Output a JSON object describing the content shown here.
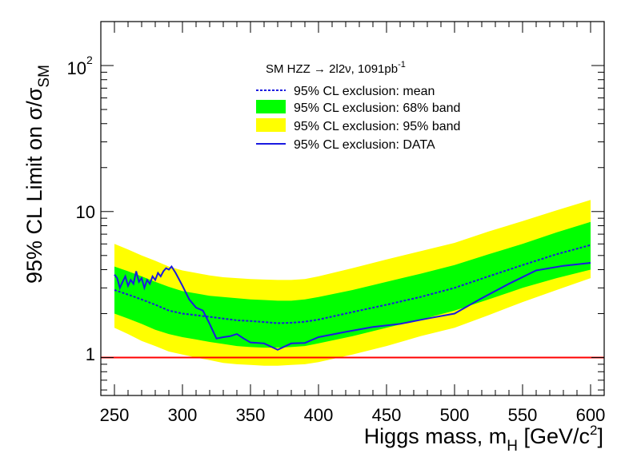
{
  "chart_data": {
    "type": "line",
    "title": "",
    "xlabel": "Higgs mass, m",
    "xlabel_sub": "H",
    "xlabel_units": "[GeV/c",
    "xlabel_units_sup": "2",
    "xlabel_units_end": "]",
    "ylabel": "95% CL Limit on σ/σ",
    "ylabel_sub": "SM",
    "xlim": [
      240,
      610
    ],
    "ylim": [
      0.55,
      200
    ],
    "yscale": "log",
    "x_ticks": [
      250,
      300,
      350,
      400,
      450,
      500,
      550,
      600
    ],
    "x_tick_labels": [
      "250",
      "300",
      "350",
      "400",
      "450",
      "500",
      "550",
      "600"
    ],
    "y_tick_labels": {
      "one": "1",
      "ten": "10",
      "hundred_base": "10",
      "hundred_exp": "2"
    },
    "legend": {
      "header": "SM HZZ → 2l2ν, 1091pb",
      "header_sup": "-1",
      "entries": [
        {
          "label": "95% CL exclusion: mean",
          "style": "dashed-line",
          "color": "#1a1ae0"
        },
        {
          "label": "95% CL exclusion: 68% band",
          "style": "fill",
          "color": "#00ff00"
        },
        {
          "label": "95% CL exclusion: 95% band",
          "style": "fill",
          "color": "#ffff00"
        },
        {
          "label": "95% CL exclusion: DATA",
          "style": "solid-line",
          "color": "#1a1ae0"
        }
      ]
    },
    "x": [
      250,
      260,
      270,
      280,
      290,
      300,
      310,
      320,
      330,
      340,
      350,
      360,
      370,
      380,
      390,
      400,
      425,
      450,
      475,
      500,
      525,
      550,
      575,
      600
    ],
    "series": [
      {
        "name": "95% CL exclusion: mean",
        "values": [
          2.9,
          2.7,
          2.5,
          2.3,
          2.1,
          2.0,
          1.95,
          1.9,
          1.85,
          1.8,
          1.78,
          1.75,
          1.72,
          1.73,
          1.76,
          1.82,
          2.05,
          2.3,
          2.6,
          3.0,
          3.6,
          4.3,
          5.1,
          5.9
        ]
      },
      {
        "name": "68% band low",
        "values": [
          2.0,
          1.85,
          1.7,
          1.55,
          1.45,
          1.38,
          1.33,
          1.28,
          1.24,
          1.2,
          1.18,
          1.17,
          1.17,
          1.18,
          1.2,
          1.25,
          1.4,
          1.6,
          1.82,
          2.1,
          2.5,
          3.0,
          3.5,
          4.0
        ]
      },
      {
        "name": "68% band high",
        "values": [
          4.2,
          3.9,
          3.6,
          3.3,
          3.05,
          2.85,
          2.75,
          2.65,
          2.6,
          2.55,
          2.5,
          2.48,
          2.45,
          2.45,
          2.5,
          2.6,
          2.9,
          3.3,
          3.75,
          4.3,
          5.1,
          6.0,
          7.2,
          8.5
        ]
      },
      {
        "name": "95% band low",
        "values": [
          1.6,
          1.45,
          1.3,
          1.2,
          1.1,
          1.05,
          1.0,
          0.96,
          0.92,
          0.9,
          0.89,
          0.88,
          0.88,
          0.89,
          0.9,
          0.93,
          1.05,
          1.2,
          1.4,
          1.6,
          1.95,
          2.4,
          2.9,
          3.5
        ]
      },
      {
        "name": "95% band high",
        "values": [
          6.0,
          5.5,
          5.0,
          4.6,
          4.2,
          3.95,
          3.8,
          3.65,
          3.55,
          3.5,
          3.45,
          3.42,
          3.4,
          3.4,
          3.45,
          3.6,
          4.1,
          4.7,
          5.35,
          6.1,
          7.3,
          8.6,
          10.2,
          12.0
        ]
      },
      {
        "name": "95% CL exclusion: DATA",
        "x": [
          250,
          252,
          254,
          256,
          258,
          260,
          262,
          264,
          266,
          268,
          270,
          272,
          274,
          276,
          278,
          280,
          282,
          284,
          286,
          288,
          290,
          292,
          295,
          300,
          305,
          310,
          315,
          320,
          325,
          330,
          335,
          340,
          345,
          350,
          360,
          370,
          380,
          390,
          400,
          420,
          440,
          460,
          480,
          500,
          520,
          540,
          560,
          580,
          600
        ],
        "values": [
          3.7,
          3.5,
          3.0,
          3.3,
          3.6,
          3.1,
          3.4,
          3.2,
          3.9,
          3.3,
          3.5,
          3.0,
          3.4,
          3.2,
          3.6,
          3.4,
          3.8,
          3.6,
          3.9,
          4.1,
          4.0,
          4.2,
          3.8,
          3.1,
          2.5,
          2.2,
          2.1,
          1.7,
          1.35,
          1.38,
          1.4,
          1.45,
          1.35,
          1.27,
          1.25,
          1.13,
          1.25,
          1.26,
          1.38,
          1.5,
          1.62,
          1.7,
          1.85,
          2.0,
          2.55,
          3.2,
          3.95,
          4.25,
          4.45
        ]
      }
    ],
    "reference_line": {
      "y": 1,
      "color": "#ff0000"
    },
    "colors": {
      "band68": "#00ff00",
      "band95": "#ffff00",
      "line": "#1a1ae0",
      "ref": "#ff0000",
      "frame": "#000000"
    }
  }
}
